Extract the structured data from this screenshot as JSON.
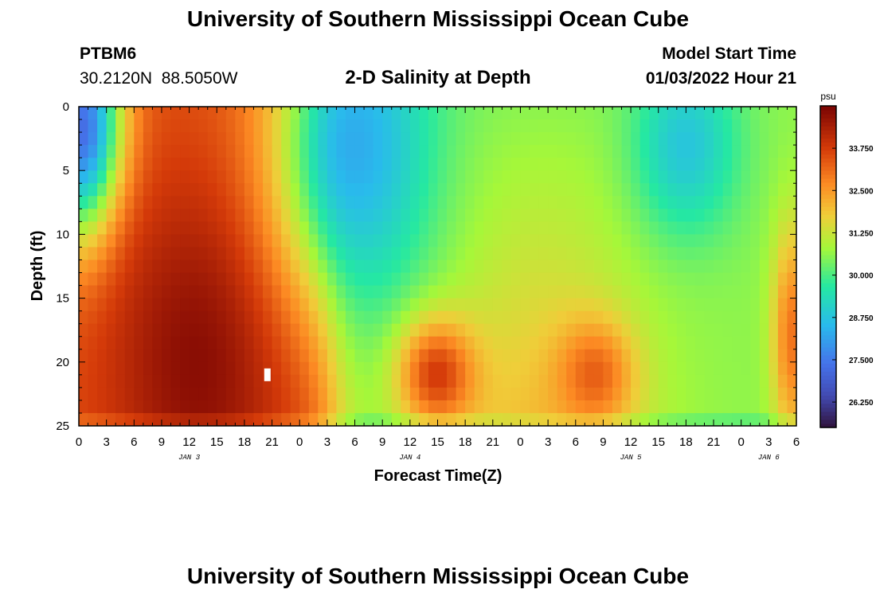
{
  "header": {
    "title": "University of Southern Mississippi Ocean Cube",
    "station": "PTBM6",
    "coords": "30.2120N  88.5050W",
    "subtitle": "2-D Salinity at Depth",
    "start_label": "Model Start Time",
    "start_value": "01/03/2022 Hour 21"
  },
  "footer": {
    "title": "University of Southern Mississippi Ocean Cube"
  },
  "chart_data": {
    "type": "heatmap",
    "title": "2-D Salinity at Depth",
    "xlabel": "Forecast Time(Z)",
    "ylabel": "Depth (ft)",
    "x_unit": "hours since JAN 3 00Z",
    "x_range": [
      0,
      78
    ],
    "y_range": [
      0,
      25
    ],
    "x_ticks": [
      0,
      3,
      6,
      9,
      12,
      15,
      18,
      21,
      24,
      27,
      30,
      33,
      36,
      39,
      42,
      45,
      48,
      51,
      54,
      57,
      60,
      63,
      66,
      69,
      72,
      75,
      78
    ],
    "x_tick_labels": [
      "0",
      "3",
      "6",
      "9",
      "12",
      "15",
      "18",
      "21",
      "0",
      "3",
      "6",
      "9",
      "12",
      "15",
      "18",
      "21",
      "0",
      "3",
      "6",
      "9",
      "12",
      "15",
      "18",
      "21",
      "0",
      "3",
      "6"
    ],
    "y_ticks": [
      0,
      5,
      10,
      15,
      20,
      25
    ],
    "y_tick_labels": [
      "0",
      "5",
      "10",
      "15",
      "20",
      "25"
    ],
    "date_labels": [
      {
        "text": "JAN 3",
        "x": 12
      },
      {
        "text": "JAN 4",
        "x": 36
      },
      {
        "text": "JAN 5",
        "x": 60
      },
      {
        "text": "JAN 6",
        "x": 75
      }
    ],
    "colorbar": {
      "unit": "psu",
      "min": 25.5,
      "max": 35.0,
      "tick_values": [
        26.25,
        27.5,
        28.75,
        30.0,
        31.25,
        32.5,
        33.75
      ],
      "tick_labels": [
        "26.250",
        "27.500",
        "28.750",
        "30.000",
        "31.250",
        "32.500",
        "33.750"
      ]
    },
    "grid": {
      "nx": 78,
      "ny": 25
    },
    "features": [
      {
        "name": "low surface at start",
        "x": 0.5,
        "y": 2,
        "sx": 3,
        "sy": 6,
        "v": 27.0
      },
      {
        "name": "high salinity core",
        "x": 13,
        "y": 20,
        "sx": 7,
        "sy": 10,
        "v": 34.8
      },
      {
        "name": "low salinity tongue",
        "x": 30,
        "y": 3,
        "sx": 6,
        "sy": 9,
        "v": 28.3
      },
      {
        "name": "secondary maximum",
        "x": 39,
        "y": 21,
        "sx": 3,
        "sy": 3,
        "v": 33.8
      },
      {
        "name": "secondary maximum 2",
        "x": 56,
        "y": 21,
        "sx": 3,
        "sy": 3,
        "v": 33.3
      },
      {
        "name": "late surface minimum",
        "x": 66,
        "y": 3,
        "sx": 4,
        "sy": 5,
        "v": 28.8
      },
      {
        "name": "bottom ramp end",
        "x": 77.5,
        "y": 18,
        "sx": 1.5,
        "sy": 6,
        "v": 33.0
      }
    ],
    "missing_value_at": {
      "x": 20.5,
      "y": 21
    }
  }
}
